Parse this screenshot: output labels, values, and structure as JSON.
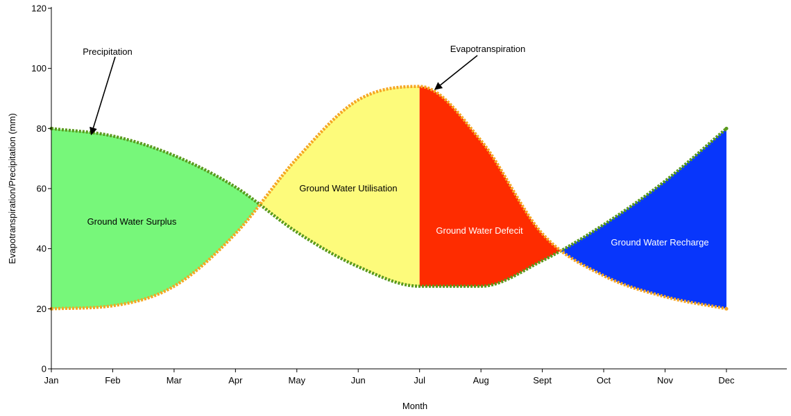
{
  "chart_data": {
    "type": "area",
    "title": "",
    "xlabel": "Month",
    "ylabel": "Evapotranspiration/Precipitation (mm)",
    "ylim": [
      0,
      120
    ],
    "yticks": [
      0,
      20,
      40,
      60,
      80,
      100,
      120
    ],
    "x_tick_labels": [
      "Jan",
      "Feb",
      "Mar",
      "Apr",
      "May",
      "Jun",
      "Jul",
      "Aug",
      "Sept",
      "Oct",
      "Nov",
      "Dec"
    ],
    "grid": false,
    "series": [
      {
        "name": "Precipitation",
        "color": "#5a9a1e",
        "values": [
          80,
          77.5,
          71,
          60.5,
          45.5,
          34,
          27.5,
          27.5,
          36,
          48,
          62.5,
          80
        ]
      },
      {
        "name": "Evapotranspiration",
        "color": "#f5a623",
        "values": [
          20,
          21,
          27.5,
          45,
          70,
          89.5,
          94,
          76,
          45,
          31,
          24,
          20
        ]
      }
    ],
    "regions": [
      {
        "label": "Ground Water Surplus",
        "color": "#77f77a",
        "text_color": "#000000"
      },
      {
        "label": "Ground Water Utilisation",
        "color": "#fdfb7b",
        "text_color": "#000000"
      },
      {
        "label": "Ground Water Defecit",
        "color": "#fe2c00",
        "text_color": "#ffffff"
      },
      {
        "label": "Ground Water Recharge",
        "color": "#0836fb",
        "text_color": "#ffffff"
      }
    ],
    "annotations": [
      {
        "label": "Precipitation",
        "target_month": 0.65,
        "target_value": 78
      },
      {
        "label": "Evapotranspiration",
        "target_month": 6.25,
        "target_value": 93
      }
    ]
  }
}
